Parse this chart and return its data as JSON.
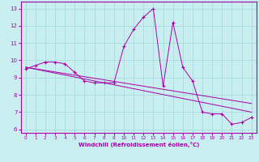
{
  "xlabel": "Windchill (Refroidissement éolien,°C)",
  "background_color": "#c8eef0",
  "line_color": "#aa00aa",
  "grid_color": "#aadddd",
  "x_data": [
    0,
    1,
    2,
    3,
    4,
    5,
    6,
    7,
    8,
    9,
    10,
    11,
    12,
    13,
    14,
    15,
    16,
    17,
    18,
    19,
    20,
    21,
    22,
    23
  ],
  "y_data": [
    9.5,
    9.7,
    9.9,
    9.9,
    9.8,
    9.3,
    8.8,
    8.7,
    8.7,
    8.7,
    10.8,
    11.8,
    12.5,
    13.0,
    8.5,
    12.2,
    9.6,
    8.8,
    7.0,
    6.9,
    6.9,
    6.3,
    6.4,
    6.7
  ],
  "trend1_x": [
    0,
    23
  ],
  "trend1_y": [
    9.6,
    7.5
  ],
  "trend2_x": [
    0,
    23
  ],
  "trend2_y": [
    9.6,
    7.0
  ],
  "xlim": [
    -0.5,
    23.5
  ],
  "ylim": [
    5.8,
    13.4
  ],
  "yticks": [
    6,
    7,
    8,
    9,
    10,
    11,
    12,
    13
  ],
  "xticks": [
    0,
    1,
    2,
    3,
    4,
    5,
    6,
    7,
    8,
    9,
    10,
    11,
    12,
    13,
    14,
    15,
    16,
    17,
    18,
    19,
    20,
    21,
    22,
    23
  ]
}
